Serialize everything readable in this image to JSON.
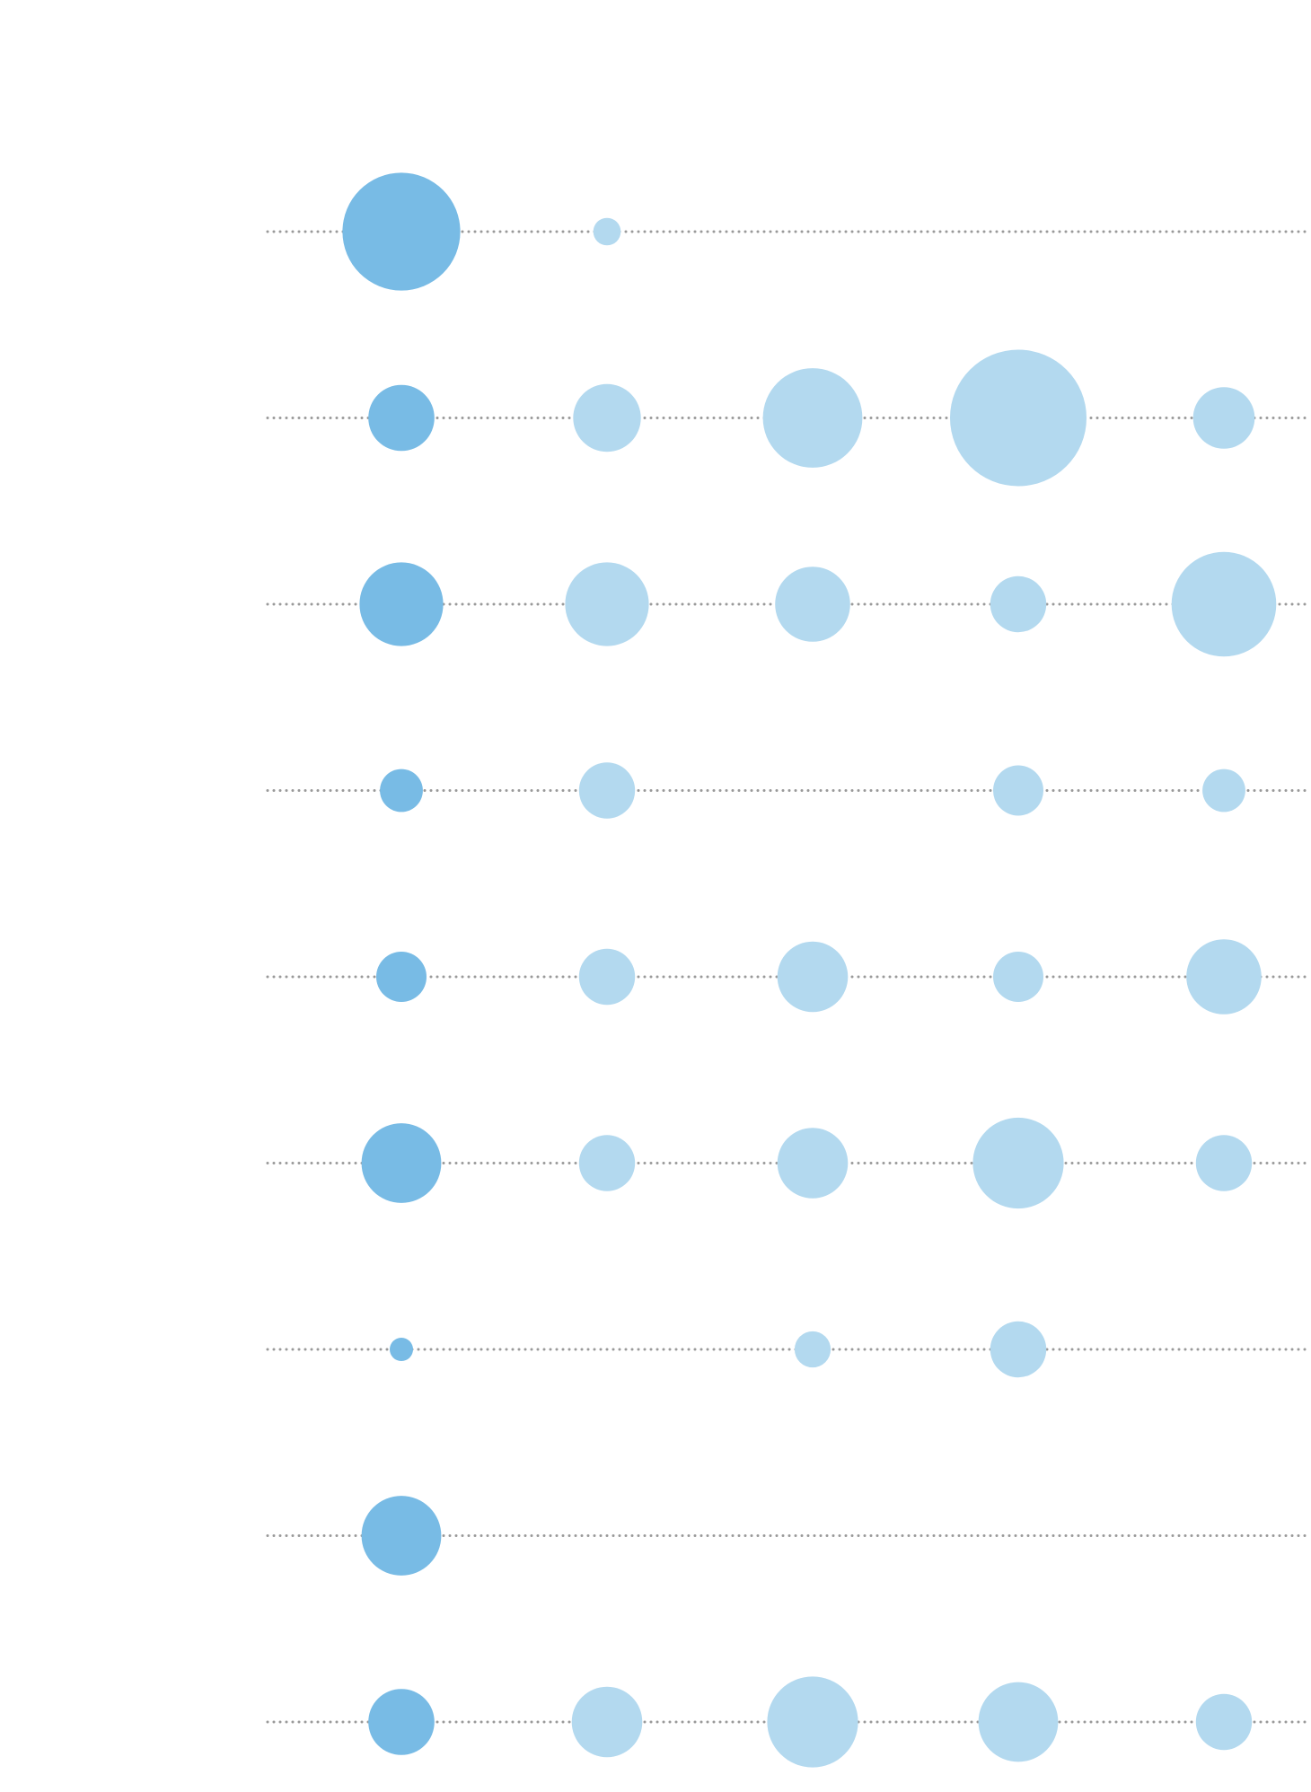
{
  "chart_data": {
    "type": "scatter",
    "encoding": "bubble-matrix",
    "title": "",
    "xlabel": "",
    "ylabel": "",
    "grid": false,
    "legend": "none",
    "colors": {
      "first_column": "#78bbe5",
      "other_columns": "#b3d9ef",
      "guide_line": "#999999",
      "background": "#ffffff"
    },
    "rows": 9,
    "columns": 5,
    "values": [
      [
        38.4,
        2.1,
        null,
        null,
        null
      ],
      [
        12.1,
        12.7,
        27.4,
        51.6,
        10.5
      ],
      [
        19.4,
        19.4,
        15.6,
        8.7,
        30.4
      ],
      [
        5.1,
        8.7,
        null,
        7.0,
        5.1
      ],
      [
        7.0,
        8.7,
        13.8,
        7.0,
        15.6
      ],
      [
        17.6,
        8.7,
        13.8,
        22.9,
        8.7
      ],
      [
        1.5,
        null,
        3.6,
        8.7,
        null
      ],
      [
        17.6,
        null,
        null,
        null,
        null
      ],
      [
        12.1,
        13.8,
        22.9,
        17.6,
        8.7
      ]
    ]
  }
}
